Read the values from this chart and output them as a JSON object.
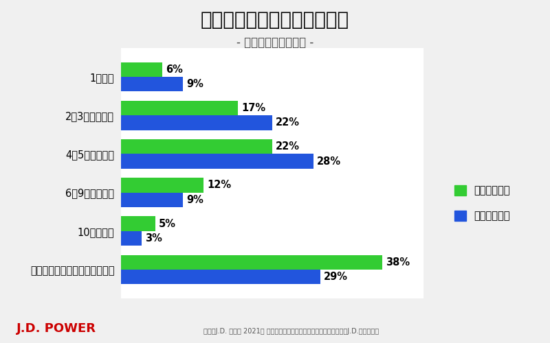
{
  "title": "次回の車の買い替え予定時期",
  "subtitle": "- 国産車・輸入車比較 -",
  "categories": [
    "1年以内",
    "2～3年後くらい",
    "4～5年後くらい",
    "6～9年後くらい",
    "10年以上後",
    "未定／買い替えるつもりはない"
  ],
  "domestic": [
    6,
    17,
    22,
    12,
    5,
    38
  ],
  "imported": [
    9,
    22,
    28,
    9,
    3,
    29
  ],
  "domestic_color": "#33cc33",
  "imported_color": "#2255dd",
  "domestic_label": "国産車保有者",
  "imported_label": "輸入車保有者",
  "background_color": "#f0f0f0",
  "chart_bg": "#ffffff",
  "bar_height": 0.38,
  "xlim": [
    0,
    44
  ],
  "footer_left": "J.D. POWER",
  "footer_right": "出典：J.D. パワー 2021年 コロナ禍のカーライフとモビリティに関するJ.D.パワー調査",
  "title_fontsize": 20,
  "subtitle_fontsize": 12,
  "label_fontsize": 10.5,
  "tick_fontsize": 10.5,
  "value_fontsize": 10.5,
  "footer_left_color": "#cc0000",
  "footer_right_color": "#555555"
}
